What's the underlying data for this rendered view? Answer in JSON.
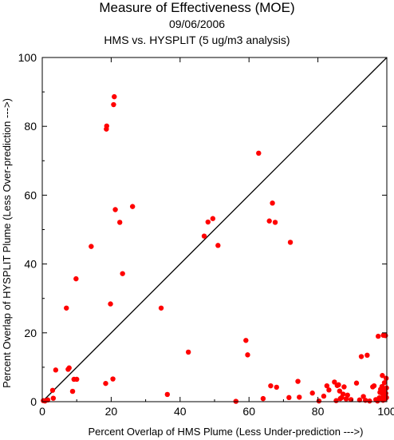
{
  "chart_data": {
    "type": "scatter",
    "title": "Measure of Effectiveness (MOE)",
    "date": "09/06/2006",
    "subtitle": "HMS vs. HYSPLIT  (5 ug/m3 analysis)",
    "xlabel": "Percent Overlap of HMS Plume (Less Under-prediction --->)",
    "ylabel": "Percent Overlap of HYSPLIT Plume (Less Over-prediction --->)",
    "xlim": [
      0,
      100
    ],
    "ylim": [
      0,
      100
    ],
    "x_ticks": [
      "0",
      "20",
      "40",
      "60",
      "80",
      "100"
    ],
    "y_ticks": [
      "0",
      "20",
      "40",
      "60",
      "80",
      "100"
    ],
    "grid": false,
    "reference_line": {
      "from": [
        0,
        0
      ],
      "to": [
        100,
        100
      ],
      "color": "#000000"
    },
    "marker_color": "#ff0000",
    "points": [
      [
        0.3,
        0.3
      ],
      [
        0.8,
        0.2
      ],
      [
        1.6,
        0.5
      ],
      [
        3.0,
        3.3
      ],
      [
        3.2,
        1.0
      ],
      [
        3.9,
        9.2
      ],
      [
        7.0,
        27.2
      ],
      [
        7.5,
        9.4
      ],
      [
        7.8,
        9.8
      ],
      [
        8.8,
        3.0
      ],
      [
        9.2,
        6.5
      ],
      [
        9.8,
        35.7
      ],
      [
        10.0,
        6.5
      ],
      [
        14.2,
        45.1
      ],
      [
        18.4,
        5.3
      ],
      [
        18.6,
        79.2
      ],
      [
        18.7,
        80.1
      ],
      [
        19.8,
        28.4
      ],
      [
        20.5,
        6.6
      ],
      [
        20.7,
        86.3
      ],
      [
        20.9,
        88.6
      ],
      [
        21.2,
        55.8
      ],
      [
        22.5,
        52.1
      ],
      [
        23.3,
        37.2
      ],
      [
        26.2,
        56.7
      ],
      [
        34.5,
        27.2
      ],
      [
        36.3,
        2.1
      ],
      [
        42.4,
        14.4
      ],
      [
        47.0,
        48.1
      ],
      [
        48.1,
        52.2
      ],
      [
        49.5,
        53.2
      ],
      [
        51.0,
        45.4
      ],
      [
        56.2,
        0.1
      ],
      [
        59.1,
        17.8
      ],
      [
        59.6,
        13.6
      ],
      [
        62.8,
        72.2
      ],
      [
        64.1,
        0.9
      ],
      [
        65.9,
        52.5
      ],
      [
        66.3,
        4.6
      ],
      [
        66.8,
        57.7
      ],
      [
        67.6,
        52.1
      ],
      [
        68.0,
        4.2
      ],
      [
        71.6,
        1.2
      ],
      [
        72.0,
        46.3
      ],
      [
        74.2,
        5.9
      ],
      [
        74.6,
        1.3
      ],
      [
        78.4,
        2.5
      ],
      [
        80.3,
        0.2
      ],
      [
        81.7,
        1.6
      ],
      [
        82.6,
        4.6
      ],
      [
        83.2,
        3.4
      ],
      [
        84.8,
        5.7
      ],
      [
        85.3,
        0.3
      ],
      [
        85.6,
        4.7
      ],
      [
        86.0,
        4.9
      ],
      [
        86.3,
        3.1
      ],
      [
        86.5,
        0.9
      ],
      [
        86.9,
        1.2
      ],
      [
        87.3,
        2.2
      ],
      [
        87.6,
        4.3
      ],
      [
        88.2,
        0.8
      ],
      [
        88.6,
        1.9
      ],
      [
        89.6,
        0.6
      ],
      [
        91.2,
        5.4
      ],
      [
        92.1,
        0.5
      ],
      [
        92.6,
        13.1
      ],
      [
        93.2,
        1.5
      ],
      [
        93.8,
        0.4
      ],
      [
        94.3,
        13.5
      ],
      [
        95.0,
        0.2
      ],
      [
        95.9,
        4.3
      ],
      [
        96.3,
        4.6
      ],
      [
        96.8,
        0.6
      ],
      [
        97.3,
        0.2
      ],
      [
        97.5,
        19.0
      ],
      [
        97.8,
        1.1
      ],
      [
        98.0,
        2.7
      ],
      [
        98.2,
        3.6
      ],
      [
        98.4,
        0.9
      ],
      [
        98.6,
        4.4
      ],
      [
        98.7,
        7.6
      ],
      [
        98.8,
        2.2
      ],
      [
        98.9,
        0.4
      ],
      [
        99.0,
        19.3
      ],
      [
        99.1,
        2.9
      ],
      [
        99.2,
        1.6
      ],
      [
        99.3,
        5.5
      ],
      [
        99.4,
        0.8
      ],
      [
        99.5,
        3.7
      ],
      [
        99.6,
        19.2
      ],
      [
        99.7,
        2.4
      ],
      [
        99.8,
        6.8
      ],
      [
        99.9,
        1.2
      ],
      [
        99.9,
        4.0
      ]
    ]
  }
}
